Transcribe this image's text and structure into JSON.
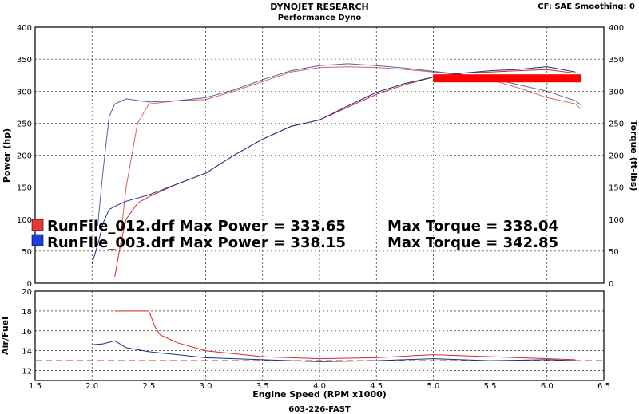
{
  "header": {
    "company": "DYNOJET RESEARCH",
    "subtitle": "Performance Dyno",
    "settings": "CF: SAE  Smoothing: 0"
  },
  "footer": {
    "id_text": "603-226-FAST"
  },
  "colors": {
    "run012": "#d42a2a",
    "run003": "#1b2c8a",
    "target_af": "#c0392b",
    "marker": "#ff0000"
  },
  "legend": [
    {
      "swatch_color": "#e53935",
      "text": "RunFile_012.drf Max Power = 333.65",
      "torque_text": "Max Torque = 338.04"
    },
    {
      "swatch_color": "#1e3fe0",
      "text": "RunFile_003.drf Max Power = 338.15",
      "torque_text": "Max Torque = 342.85"
    }
  ],
  "chart_data": [
    {
      "type": "line",
      "name": "power-torque",
      "xlabel": "Engine Speed (RPM x1000)",
      "ylabel": "Power (hp)",
      "y2label": "Torque (ft-lbs)",
      "xlim": [
        1.5,
        6.5
      ],
      "ylim": [
        0,
        400
      ],
      "y2lim": [
        0,
        400
      ],
      "x_ticks": [
        1.5,
        2.0,
        2.5,
        3.0,
        3.5,
        4.0,
        4.5,
        5.0,
        5.5,
        6.0,
        6.5
      ],
      "x_tick_labels": [
        "1.5",
        "2.0",
        "2.5",
        "3.0",
        "3.5",
        "4.0",
        "4.5",
        "5.0",
        "5.5",
        "6.0",
        "6.5"
      ],
      "y_ticks": [
        0,
        50,
        100,
        150,
        200,
        250,
        300,
        350,
        400
      ],
      "y_tick_labels": [
        "0",
        "50",
        "100",
        "150",
        "200",
        "250",
        "300",
        "350",
        "400"
      ],
      "grid": true,
      "series": [
        {
          "name": "RunFile_012.drf",
          "quantity": "power",
          "color": "#d42a2a",
          "x": [
            2.2,
            2.25,
            2.3,
            2.4,
            2.5,
            2.75,
            3.0,
            3.25,
            3.5,
            3.75,
            4.0,
            4.25,
            4.5,
            4.75,
            5.0,
            5.25,
            5.5,
            5.75,
            6.0,
            6.25
          ],
          "y": [
            10,
            60,
            100,
            125,
            135,
            155,
            172,
            200,
            225,
            245,
            255,
            275,
            295,
            310,
            322,
            328,
            330,
            332,
            333.65,
            328
          ]
        },
        {
          "name": "RunFile_003.drf",
          "quantity": "power",
          "color": "#1b2c8a",
          "x": [
            2.0,
            2.05,
            2.1,
            2.15,
            2.2,
            2.3,
            2.5,
            2.75,
            3.0,
            3.25,
            3.5,
            3.75,
            4.0,
            4.25,
            4.5,
            4.75,
            5.0,
            5.25,
            5.5,
            5.75,
            6.0,
            6.25
          ],
          "y": [
            30,
            60,
            95,
            115,
            120,
            128,
            138,
            155,
            172,
            200,
            225,
            245,
            255,
            277,
            298,
            312,
            322,
            328,
            332,
            334,
            338.15,
            330
          ]
        },
        {
          "name": "RunFile_012.drf",
          "quantity": "torque",
          "color": "#d42a2a",
          "x": [
            2.25,
            2.3,
            2.4,
            2.5,
            2.75,
            3.0,
            3.25,
            3.5,
            3.75,
            4.0,
            4.25,
            4.5,
            4.75,
            5.0,
            5.25,
            5.5,
            5.75,
            6.0,
            6.25,
            6.3
          ],
          "y": [
            70,
            150,
            250,
            280,
            285,
            287,
            300,
            315,
            330,
            337,
            338.04,
            337,
            334,
            330,
            325,
            318,
            305,
            290,
            280,
            272
          ]
        },
        {
          "name": "RunFile_003.drf",
          "quantity": "torque",
          "color": "#1b2c8a",
          "x": [
            2.05,
            2.1,
            2.15,
            2.2,
            2.3,
            2.5,
            2.75,
            3.0,
            3.25,
            3.5,
            3.75,
            4.0,
            4.25,
            4.5,
            4.75,
            5.0,
            5.25,
            5.5,
            5.75,
            6.0,
            6.25,
            6.3
          ],
          "y": [
            90,
            180,
            260,
            280,
            288,
            283,
            285,
            290,
            302,
            318,
            332,
            340,
            342.85,
            340,
            336,
            331,
            326,
            320,
            310,
            300,
            285,
            278
          ]
        }
      ],
      "marker_bar": {
        "x_start": 5.0,
        "x_end": 6.3,
        "y_center": 320,
        "color": "#ff0000"
      }
    },
    {
      "type": "line",
      "name": "air-fuel",
      "xlabel": "Engine Speed (RPM x1000)",
      "ylabel": "Air/Fuel",
      "xlim": [
        1.5,
        6.5
      ],
      "ylim": [
        11,
        20
      ],
      "y_ticks": [
        12,
        14,
        16,
        18,
        20
      ],
      "y_tick_labels": [
        "12",
        "14",
        "16",
        "18",
        "20"
      ],
      "target": 13.0,
      "grid": true,
      "series": [
        {
          "name": "RunFile_012.drf",
          "color": "#d42a2a",
          "x": [
            2.2,
            2.3,
            2.4,
            2.5,
            2.55,
            2.6,
            2.75,
            3.0,
            3.25,
            3.5,
            4.0,
            4.5,
            5.0,
            5.5,
            6.0,
            6.25
          ],
          "y": [
            18.0,
            18.0,
            18.0,
            18.0,
            16.5,
            15.6,
            14.8,
            14.0,
            13.7,
            13.4,
            13.2,
            13.3,
            13.6,
            13.4,
            13.2,
            13.1
          ]
        },
        {
          "name": "RunFile_003.drf",
          "color": "#1b2c8a",
          "x": [
            2.0,
            2.1,
            2.2,
            2.3,
            2.5,
            2.75,
            3.0,
            3.5,
            4.0,
            4.5,
            5.0,
            5.5,
            6.0,
            6.25
          ],
          "y": [
            14.6,
            14.7,
            15.0,
            14.3,
            13.9,
            13.6,
            13.3,
            13.1,
            12.9,
            13.0,
            13.2,
            13.0,
            13.1,
            13.0
          ]
        }
      ]
    }
  ]
}
